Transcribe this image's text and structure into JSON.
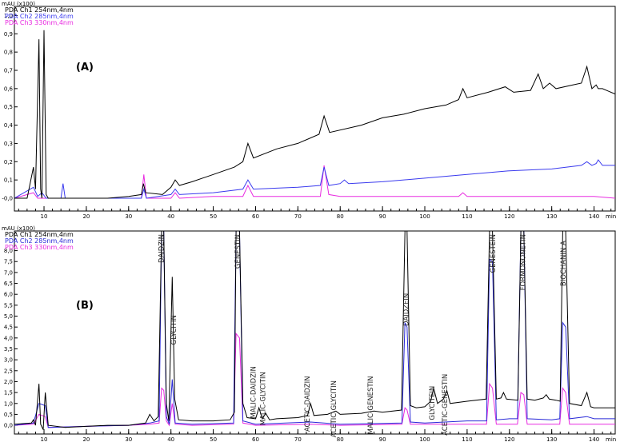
{
  "chart_data": [
    {
      "type": "line",
      "panel_label": "(A)",
      "ylabel": "mAU (x100)",
      "xlabel": "min",
      "xlim": [
        3,
        145
      ],
      "ylim": [
        -0.07,
        1.05
      ],
      "x_ticks": [
        10,
        20,
        30,
        40,
        50,
        60,
        70,
        80,
        90,
        100,
        110,
        120,
        130,
        140
      ],
      "y_ticks": [
        -0.0,
        0.1,
        0.2,
        0.3,
        0.4,
        0.5,
        0.6,
        0.7,
        0.8,
        0.9,
        1.0
      ],
      "y_tick_labels": [
        "-0,0",
        "0,1",
        "0,2",
        "0,3",
        "0,4",
        "0,5",
        "0,6",
        "0,7",
        "0,8",
        "0,9",
        "1,0"
      ],
      "legend_placement": "top-left",
      "series": [
        {
          "name": "PDA Ch1 254nm,4nm",
          "color": "#000000",
          "x": [
            3,
            6,
            7.5,
            8,
            8.8,
            9.2,
            9.5,
            10,
            10.5,
            11,
            15,
            20,
            25,
            30,
            33,
            33.5,
            34,
            38,
            40,
            41,
            42,
            45,
            50,
            55,
            57,
            58.2,
            59.5,
            65,
            70,
            75,
            76.2,
            77.5,
            85,
            90,
            95,
            100,
            105,
            108,
            109,
            110,
            115,
            119,
            121,
            125,
            126.8,
            128,
            129.5,
            131,
            135,
            137,
            138.3,
            139.5,
            140.5,
            141,
            142,
            145
          ],
          "y": [
            0.0,
            0.0,
            0.17,
            0.05,
            0.87,
            0.05,
            0.0,
            0.92,
            0.02,
            0.0,
            0.0,
            0.0,
            0.0,
            0.01,
            0.02,
            0.08,
            0.03,
            0.02,
            0.06,
            0.1,
            0.07,
            0.09,
            0.13,
            0.17,
            0.2,
            0.3,
            0.22,
            0.27,
            0.3,
            0.35,
            0.45,
            0.36,
            0.4,
            0.44,
            0.46,
            0.49,
            0.51,
            0.54,
            0.6,
            0.55,
            0.58,
            0.61,
            0.58,
            0.59,
            0.68,
            0.6,
            0.63,
            0.6,
            0.62,
            0.63,
            0.72,
            0.6,
            0.62,
            0.6,
            0.6,
            0.57
          ]
        },
        {
          "name": "PDA Ch2 285nm,4nm",
          "color": "#3a3aee",
          "x": [
            3,
            7.5,
            8.5,
            9.5,
            10.5,
            12,
            14,
            14.5,
            15,
            20,
            30,
            33,
            33.6,
            34.2,
            40,
            41,
            42,
            50,
            57,
            58.2,
            59.5,
            70,
            75.3,
            76.2,
            77.3,
            80,
            81,
            82,
            90,
            100,
            110,
            120,
            130,
            137,
            138.3,
            139.5,
            140.5,
            141,
            142,
            145
          ],
          "y": [
            0.0,
            0.06,
            0.01,
            0.03,
            0.0,
            0.0,
            0.0,
            0.08,
            0.0,
            0.0,
            0.0,
            0.0,
            0.05,
            0.0,
            0.02,
            0.05,
            0.02,
            0.03,
            0.05,
            0.1,
            0.05,
            0.06,
            0.07,
            0.17,
            0.07,
            0.08,
            0.1,
            0.08,
            0.09,
            0.11,
            0.13,
            0.15,
            0.16,
            0.18,
            0.2,
            0.18,
            0.19,
            0.21,
            0.18,
            0.18
          ]
        },
        {
          "name": "PDA Ch3 330nm,4nm",
          "color": "#e82be0",
          "x": [
            3,
            7.5,
            8.5,
            10,
            20,
            30,
            33,
            33.6,
            34.2,
            40,
            41,
            42,
            50,
            57,
            58.2,
            59.5,
            70,
            75.3,
            76.2,
            77.3,
            80,
            90,
            100,
            108,
            109,
            110,
            120,
            130,
            140,
            145
          ],
          "y": [
            0.0,
            0.03,
            0.0,
            0.0,
            0.0,
            0.0,
            0.0,
            0.13,
            0.0,
            0.0,
            0.03,
            0.0,
            0.01,
            0.01,
            0.07,
            0.01,
            0.01,
            0.01,
            0.18,
            0.02,
            0.01,
            0.01,
            0.01,
            0.01,
            0.03,
            0.01,
            0.01,
            0.01,
            0.01,
            0.0
          ]
        }
      ]
    },
    {
      "type": "line",
      "panel_label": "(B)",
      "ylabel": "mAU (x100)",
      "xlabel": "min",
      "xlim": [
        3,
        145
      ],
      "ylim": [
        -0.4,
        8.9
      ],
      "x_ticks": [
        10,
        20,
        30,
        40,
        50,
        60,
        70,
        80,
        90,
        100,
        110,
        120,
        130,
        140
      ],
      "y_ticks": [
        0,
        0.5,
        1.0,
        1.5,
        2.0,
        2.5,
        3.0,
        3.5,
        4.0,
        4.5,
        5.0,
        5.5,
        6.0,
        6.5,
        7.0,
        7.5,
        8.0
      ],
      "y_tick_labels": [
        "0,0",
        "0,5",
        "1,0",
        "1,5",
        "2,0",
        "2,5",
        "3,0",
        "3,5",
        "4,0",
        "4,5",
        "5,0",
        "5,5",
        "6,0",
        "6,5",
        "7,0",
        "7,5",
        "8,0"
      ],
      "legend_placement": "top-left",
      "annotations": [
        {
          "text": "DAIDZIN",
          "x": 38.3,
          "y": 8.9
        },
        {
          "text": "GLYCITIN",
          "x": 41.2,
          "y": 5.2
        },
        {
          "text": "GENESTIN",
          "x": 56.3,
          "y": 8.9
        },
        {
          "text": "MALIC-DAIDZIN",
          "x": 60.0,
          "y": 2.85
        },
        {
          "text": "MALIC-GLYCITIN",
          "x": 62.3,
          "y": 2.6
        },
        {
          "text": "ACETIC-DAIDZIN",
          "x": 72.8,
          "y": 2.4
        },
        {
          "text": "ACETIC-GLYCITIN",
          "x": 79.0,
          "y": 2.2
        },
        {
          "text": "MALIC-GENESTIN",
          "x": 87.7,
          "y": 2.4
        },
        {
          "text": "DAIDZEIN",
          "x": 96.1,
          "y": 6.2
        },
        {
          "text": "GLYCITEIN",
          "x": 102.3,
          "y": 1.95
        },
        {
          "text": "ACETIC-GENESTIN",
          "x": 105.3,
          "y": 2.5
        },
        {
          "text": "GENESTEIN",
          "x": 116.6,
          "y": 8.9
        },
        {
          "text": "FORMONONETIN",
          "x": 123.7,
          "y": 8.9
        },
        {
          "text": "BIOCHANIN A",
          "x": 133.3,
          "y": 8.6
        }
      ],
      "series": [
        {
          "name": "PDA Ch1 254nm,4nm",
          "color": "#000000",
          "x": [
            3,
            7,
            7.5,
            8,
            8.8,
            9.2,
            9.8,
            10.3,
            11,
            15,
            20,
            25,
            30,
            34,
            35,
            36,
            37,
            37.8,
            38.3,
            38.9,
            39.5,
            40.3,
            40.9,
            41.8,
            45,
            50,
            54,
            55,
            55.4,
            56.2,
            57,
            58,
            60,
            60.8,
            61.6,
            62.4,
            63.3,
            65,
            70,
            72.3,
            73,
            73.8,
            77,
            79,
            80,
            85,
            88,
            90,
            94.5,
            95.3,
            95.8,
            96.6,
            98,
            100,
            101.4,
            102.1,
            103,
            104.4,
            105.2,
            106,
            110,
            114.5,
            115.3,
            116,
            116.9,
            118,
            118.6,
            119.3,
            122,
            122.7,
            123.4,
            124.2,
            126,
            128,
            128.7,
            129.4,
            131,
            132,
            132.6,
            133.3,
            134.2,
            137,
            138.3,
            139.2,
            140,
            145
          ],
          "y": [
            0.05,
            0.1,
            0.25,
            0.0,
            1.9,
            0.05,
            -0.2,
            1.5,
            0.0,
            -0.1,
            -0.05,
            0.0,
            0.0,
            0.1,
            0.5,
            0.2,
            0.4,
            8.9,
            8.9,
            1.0,
            0.2,
            6.8,
            1.2,
            0.25,
            0.2,
            0.2,
            0.25,
            0.6,
            8.9,
            8.9,
            1.0,
            0.35,
            0.3,
            0.8,
            0.3,
            0.55,
            0.25,
            0.3,
            0.35,
            0.45,
            1.0,
            0.45,
            0.5,
            0.65,
            0.5,
            0.55,
            0.65,
            0.6,
            0.7,
            8.9,
            8.9,
            0.9,
            0.8,
            0.85,
            1.1,
            1.7,
            1.0,
            1.2,
            1.6,
            1.0,
            1.1,
            1.2,
            8.9,
            8.9,
            1.2,
            1.25,
            1.5,
            1.2,
            1.15,
            8.9,
            8.9,
            1.2,
            1.15,
            1.25,
            1.4,
            1.2,
            1.15,
            1.1,
            8.9,
            8.9,
            1.0,
            0.9,
            1.5,
            0.85,
            0.8,
            0.8
          ]
        },
        {
          "name": "PDA Ch2 285nm,4nm",
          "color": "#2a2ad8",
          "x": [
            3,
            7.5,
            8.8,
            10.3,
            11,
            20,
            30,
            35,
            37.2,
            37.8,
            38.3,
            38.9,
            39.6,
            40.3,
            41,
            45,
            54.8,
            55.4,
            56.2,
            57,
            60,
            73,
            80,
            94.6,
            95.3,
            95.8,
            96.6,
            100,
            110,
            114.6,
            115.3,
            116,
            116.9,
            120,
            121.9,
            122.7,
            123.4,
            124.2,
            130,
            131.9,
            132.6,
            133.3,
            134.2,
            138.3,
            140,
            145
          ],
          "y": [
            0.0,
            0.1,
            1.0,
            0.9,
            -0.1,
            -0.05,
            0.0,
            0.1,
            0.2,
            8.9,
            8.9,
            0.4,
            0.05,
            2.1,
            0.1,
            0.05,
            0.1,
            8.9,
            8.9,
            0.2,
            0.05,
            0.15,
            0.05,
            0.1,
            4.7,
            4.5,
            0.15,
            0.1,
            0.2,
            0.2,
            7.6,
            7.5,
            0.25,
            0.3,
            0.3,
            8.9,
            8.9,
            0.3,
            0.25,
            0.3,
            4.7,
            4.5,
            0.3,
            0.4,
            0.3,
            0.3
          ]
        },
        {
          "name": "PDA Ch3 330nm,4nm",
          "color": "#e82be0",
          "x": [
            3,
            7.5,
            8.8,
            10.3,
            11,
            20,
            30,
            35,
            37.2,
            37.8,
            38.3,
            38.9,
            39.6,
            40.3,
            41,
            45,
            54.8,
            55.4,
            56.2,
            57,
            60,
            73,
            80,
            94.6,
            95.3,
            95.8,
            96.6,
            100,
            110,
            114.6,
            115.3,
            116,
            116.9,
            120,
            121.9,
            122.7,
            123.4,
            124.2,
            130,
            131.9,
            132.6,
            133.3,
            134.2,
            140,
            145
          ],
          "y": [
            0.0,
            0.05,
            0.5,
            0.4,
            -0.1,
            -0.05,
            0.0,
            0.05,
            0.1,
            1.7,
            1.6,
            0.2,
            0.0,
            1.0,
            0.05,
            0.0,
            0.05,
            4.2,
            4.0,
            0.1,
            0.0,
            0.05,
            0.0,
            0.05,
            0.8,
            0.7,
            0.05,
            0.05,
            0.05,
            0.05,
            1.9,
            1.7,
            0.05,
            0.05,
            0.05,
            1.5,
            1.4,
            0.05,
            0.05,
            0.05,
            1.7,
            1.5,
            0.05,
            0.05,
            0.05
          ]
        }
      ]
    }
  ]
}
